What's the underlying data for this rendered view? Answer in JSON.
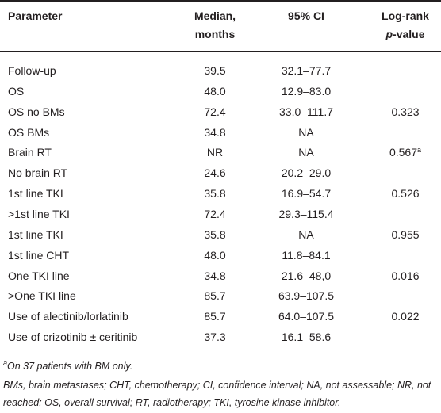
{
  "table": {
    "header": {
      "parameter": "Parameter",
      "median": [
        "Median,",
        "months"
      ],
      "ci": "95% CI",
      "logrank": [
        "Log-rank",
        {
          "italic": "p",
          "text": "-value"
        }
      ]
    },
    "rows": [
      {
        "parameter": "Follow-up",
        "median": "39.5",
        "ci": "32.1–77.7"
      },
      {
        "parameter": "OS",
        "median": "48.0",
        "ci": "12.9–83.0"
      },
      {
        "parameter": "OS no BMs",
        "median": "72.4",
        "ci": "33.0–111.7",
        "logrank": "0.323"
      },
      {
        "parameter": "OS BMs",
        "median": "34.8",
        "ci": "NA"
      },
      {
        "parameter": "Brain RT",
        "median": "NR",
        "ci": "NA",
        "logrank": {
          "text": "0.567",
          "sup": "a"
        }
      },
      {
        "parameter": "No brain RT",
        "median": "24.6",
        "ci": "20.2–29.0"
      },
      {
        "parameter": "1st line TKI",
        "median": "35.8",
        "ci": "16.9–54.7",
        "logrank": "0.526"
      },
      {
        "parameter": ">1st line TKI",
        "median": "72.4",
        "ci": "29.3–115.4"
      },
      {
        "parameter": "1st line TKI",
        "median": "35.8",
        "ci": "NA",
        "logrank": "0.955"
      },
      {
        "parameter": "1st line CHT",
        "median": "48.0",
        "ci": "11.8–84.1"
      },
      {
        "parameter": "One TKI line",
        "median": "34.8",
        "ci": "21.6–48,0",
        "logrank": "0.016"
      },
      {
        "parameter": ">One TKI line",
        "median": "85.7",
        "ci": "63.9–107.5"
      },
      {
        "parameter": "Use of alectinib/lorlatinib",
        "median": "85.7",
        "ci": "64.0–107.5",
        "logrank": "0.022"
      },
      {
        "parameter": "Use of crizotinib ± ceritinib",
        "median": "37.3",
        "ci": "16.1–58.6"
      }
    ]
  },
  "footnotes": {
    "a": {
      "mark": "a",
      "text": "On 37 patients with BM only."
    },
    "abbreviations": "BMs, brain metastases; CHT, chemotherapy; CI, confidence interval; NA, not assessable; NR, not reached; OS, overall survival; RT, radiotherapy; TKI, tyrosine kinase inhibitor."
  }
}
